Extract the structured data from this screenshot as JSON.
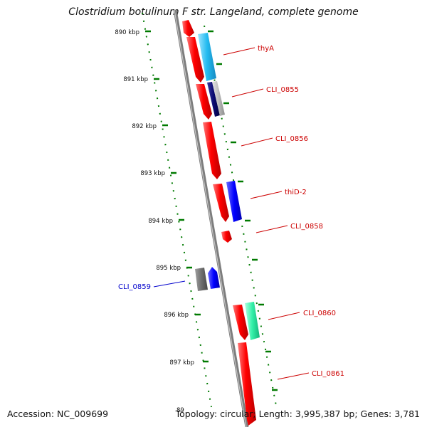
{
  "title": "Clostridium botulinum F str. Langeland, complete genome",
  "accession": "Accession: NC_009699",
  "summary": "Topology: circular; Length: 3,995,387 bp; Genes: 3,781",
  "colors": {
    "backbone": "#8a8a8a",
    "tick": "#007a00",
    "label_red": "#cc0000",
    "label_blue": "#0000cc"
  },
  "ruler": [
    "890 kbp",
    "891 kbp",
    "892 kbp",
    "893 kbp",
    "894 kbp",
    "895 kbp",
    "896 kbp",
    "897 kbp",
    "89"
  ],
  "gene_labels": [
    {
      "text": "thyA",
      "color": "red"
    },
    {
      "text": "CLI_0855",
      "color": "red"
    },
    {
      "text": "CLI_0856",
      "color": "red"
    },
    {
      "text": "thiD-2",
      "color": "red"
    },
    {
      "text": "CLI_0858",
      "color": "red"
    },
    {
      "text": "CLI_0859",
      "color": "blue"
    },
    {
      "text": "CLI_0860",
      "color": "red"
    },
    {
      "text": "CLI_0861",
      "color": "red"
    }
  ]
}
